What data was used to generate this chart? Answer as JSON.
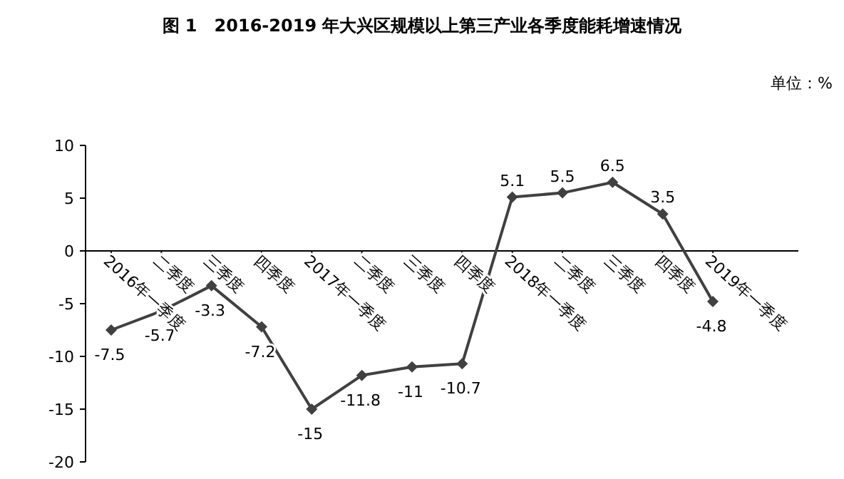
{
  "chart_data": {
    "type": "line",
    "title": "图 1　2016-2019 年大兴区规模以上第三产业各季度能耗增速情况",
    "annotations": [
      "单位：%"
    ],
    "categories": [
      "2016年一季度",
      "二季度",
      "三季度",
      "四季度",
      "2017年一季度",
      "二季度",
      "三季度",
      "四季度",
      "2018年一季度",
      "二季度",
      "三季度",
      "四季度",
      "2019年一季度"
    ],
    "series": [
      {
        "color": "#404040",
        "values": [
          -7.5,
          -5.7,
          -3.3,
          -7.2,
          -15,
          -11.8,
          -11,
          -10.7,
          5.1,
          5.5,
          6.5,
          3.5,
          -4.8
        ]
      }
    ],
    "ylim": [
      -20,
      10
    ],
    "yticks": [
      -20,
      -15,
      -10,
      -5,
      0,
      5,
      10
    ],
    "data_labels": true,
    "marker": "diamond",
    "line_style": "solid",
    "grid": false
  }
}
